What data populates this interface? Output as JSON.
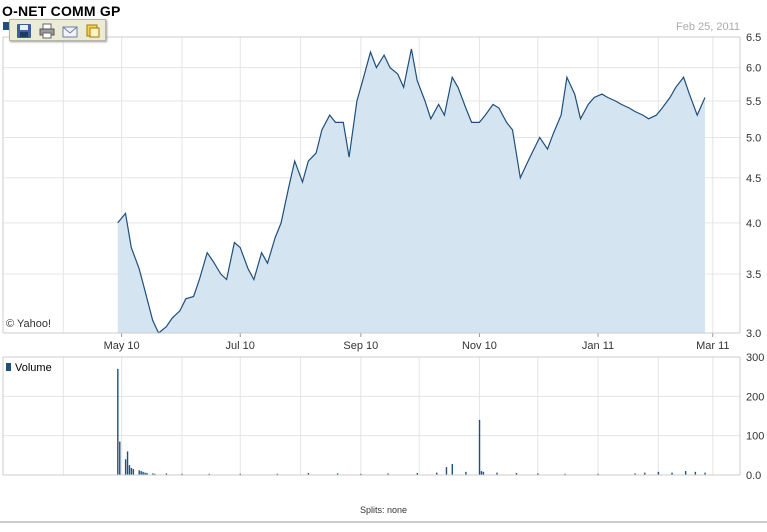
{
  "header": {
    "title": "O-NET COMM GP",
    "date": "Feb 25, 2011"
  },
  "toolbar": {
    "buttons": [
      {
        "name": "save-icon"
      },
      {
        "name": "print-icon"
      },
      {
        "name": "email-icon"
      },
      {
        "name": "copy-icon"
      }
    ]
  },
  "copyright": "© Yahoo!",
  "volume_label": "Volume",
  "splits": "Splits: none",
  "colors": {
    "line": "#1f4f7a",
    "fill": "#d4e4f1",
    "grid": "#e5e5e5"
  },
  "chart_data": [
    {
      "type": "area",
      "title": "O-NET COMM GP",
      "x_ticks": [
        "May 10",
        "Jul 10",
        "Sep 10",
        "Nov 10",
        "Jan 11",
        "Mar 11"
      ],
      "y_ticks": [
        "3.0",
        "3.5",
        "4.0",
        "4.5",
        "5.0",
        "5.5",
        "6.0",
        "6.5"
      ],
      "ylim": [
        3.0,
        6.5
      ],
      "y_scale": "log",
      "grid": true,
      "series": [
        {
          "x": [
            "2010-04-29",
            "2010-05-03",
            "2010-05-06",
            "2010-05-10",
            "2010-05-13",
            "2010-05-17",
            "2010-05-20",
            "2010-05-24",
            "2010-05-27",
            "2010-05-31",
            "2010-06-03",
            "2010-06-07",
            "2010-06-10",
            "2010-06-14",
            "2010-06-17",
            "2010-06-21",
            "2010-06-24",
            "2010-06-28",
            "2010-07-01",
            "2010-07-05",
            "2010-07-08",
            "2010-07-12",
            "2010-07-15",
            "2010-07-19",
            "2010-07-22",
            "2010-07-26",
            "2010-07-29",
            "2010-08-02",
            "2010-08-05",
            "2010-08-09",
            "2010-08-12",
            "2010-08-16",
            "2010-08-19",
            "2010-08-23",
            "2010-08-26",
            "2010-08-30",
            "2010-09-02",
            "2010-09-06",
            "2010-09-09",
            "2010-09-13",
            "2010-09-16",
            "2010-09-20",
            "2010-09-23",
            "2010-09-27",
            "2010-09-30",
            "2010-10-04",
            "2010-10-07",
            "2010-10-11",
            "2010-10-14",
            "2010-10-18",
            "2010-10-21",
            "2010-10-25",
            "2010-10-28",
            "2010-11-01",
            "2010-11-04",
            "2010-11-08",
            "2010-11-11",
            "2010-11-15",
            "2010-11-18",
            "2010-11-22",
            "2010-11-25",
            "2010-11-29",
            "2010-12-02",
            "2010-12-06",
            "2010-12-09",
            "2010-12-13",
            "2010-12-16",
            "2010-12-20",
            "2010-12-23",
            "2010-12-27",
            "2010-12-30",
            "2011-01-03",
            "2011-01-06",
            "2011-01-10",
            "2011-01-13",
            "2011-01-17",
            "2011-01-20",
            "2011-01-24",
            "2011-01-27",
            "2011-01-31",
            "2011-02-03",
            "2011-02-07",
            "2011-02-10",
            "2011-02-14",
            "2011-02-17",
            "2011-02-21",
            "2011-02-25"
          ],
          "values": [
            4.0,
            4.1,
            3.75,
            3.55,
            3.35,
            3.1,
            3.0,
            3.05,
            3.12,
            3.18,
            3.28,
            3.3,
            3.45,
            3.7,
            3.62,
            3.5,
            3.45,
            3.8,
            3.75,
            3.55,
            3.45,
            3.7,
            3.6,
            3.85,
            4.0,
            4.4,
            4.7,
            4.45,
            4.7,
            4.8,
            5.1,
            5.3,
            5.2,
            5.2,
            4.75,
            5.5,
            5.8,
            6.25,
            6.0,
            6.2,
            6.0,
            5.9,
            5.7,
            6.3,
            5.8,
            5.5,
            5.25,
            5.45,
            5.3,
            5.85,
            5.7,
            5.4,
            5.2,
            5.2,
            5.3,
            5.45,
            5.4,
            5.2,
            5.1,
            4.5,
            4.65,
            4.85,
            5.0,
            4.85,
            5.05,
            5.3,
            5.85,
            5.6,
            5.25,
            5.45,
            5.55,
            5.6,
            5.55,
            5.5,
            5.45,
            5.4,
            5.35,
            5.3,
            5.25,
            5.3,
            5.4,
            5.55,
            5.7,
            5.85,
            5.6,
            5.3,
            5.55
          ]
        }
      ]
    },
    {
      "type": "bar",
      "title": "Volume",
      "y_ticks": [
        "0.0",
        "100",
        "200",
        "300"
      ],
      "ylim": [
        0,
        300
      ],
      "x_ticks": [
        "May 10",
        "Jul 10",
        "Sep 10",
        "Nov 10",
        "Jan 11",
        "Mar 11"
      ],
      "series": [
        {
          "name": "Volume",
          "x": [
            "2010-04-29",
            "2010-04-30",
            "2010-05-03",
            "2010-05-04",
            "2010-05-05",
            "2010-05-06",
            "2010-05-07",
            "2010-05-10",
            "2010-05-11",
            "2010-05-12",
            "2010-05-13",
            "2010-05-14",
            "2010-05-17",
            "2010-05-18",
            "2010-05-24",
            "2010-06-01",
            "2010-06-15",
            "2010-07-01",
            "2010-07-20",
            "2010-08-05",
            "2010-08-20",
            "2010-09-01",
            "2010-09-15",
            "2010-09-30",
            "2010-10-10",
            "2010-10-15",
            "2010-10-18",
            "2010-10-25",
            "2010-11-01",
            "2010-11-02",
            "2010-11-03",
            "2010-11-10",
            "2010-11-20",
            "2010-12-01",
            "2010-12-15",
            "2011-01-01",
            "2011-01-20",
            "2011-01-25",
            "2011-02-01",
            "2011-02-08",
            "2011-02-15",
            "2011-02-20",
            "2011-02-25"
          ],
          "values": [
            270,
            85,
            40,
            60,
            25,
            18,
            15,
            12,
            10,
            8,
            6,
            5,
            4,
            3,
            4,
            3,
            3,
            3,
            3,
            5,
            4,
            3,
            4,
            5,
            6,
            20,
            28,
            8,
            140,
            10,
            8,
            6,
            5,
            4,
            3,
            3,
            4,
            6,
            8,
            6,
            10,
            8,
            6
          ]
        }
      ]
    }
  ]
}
